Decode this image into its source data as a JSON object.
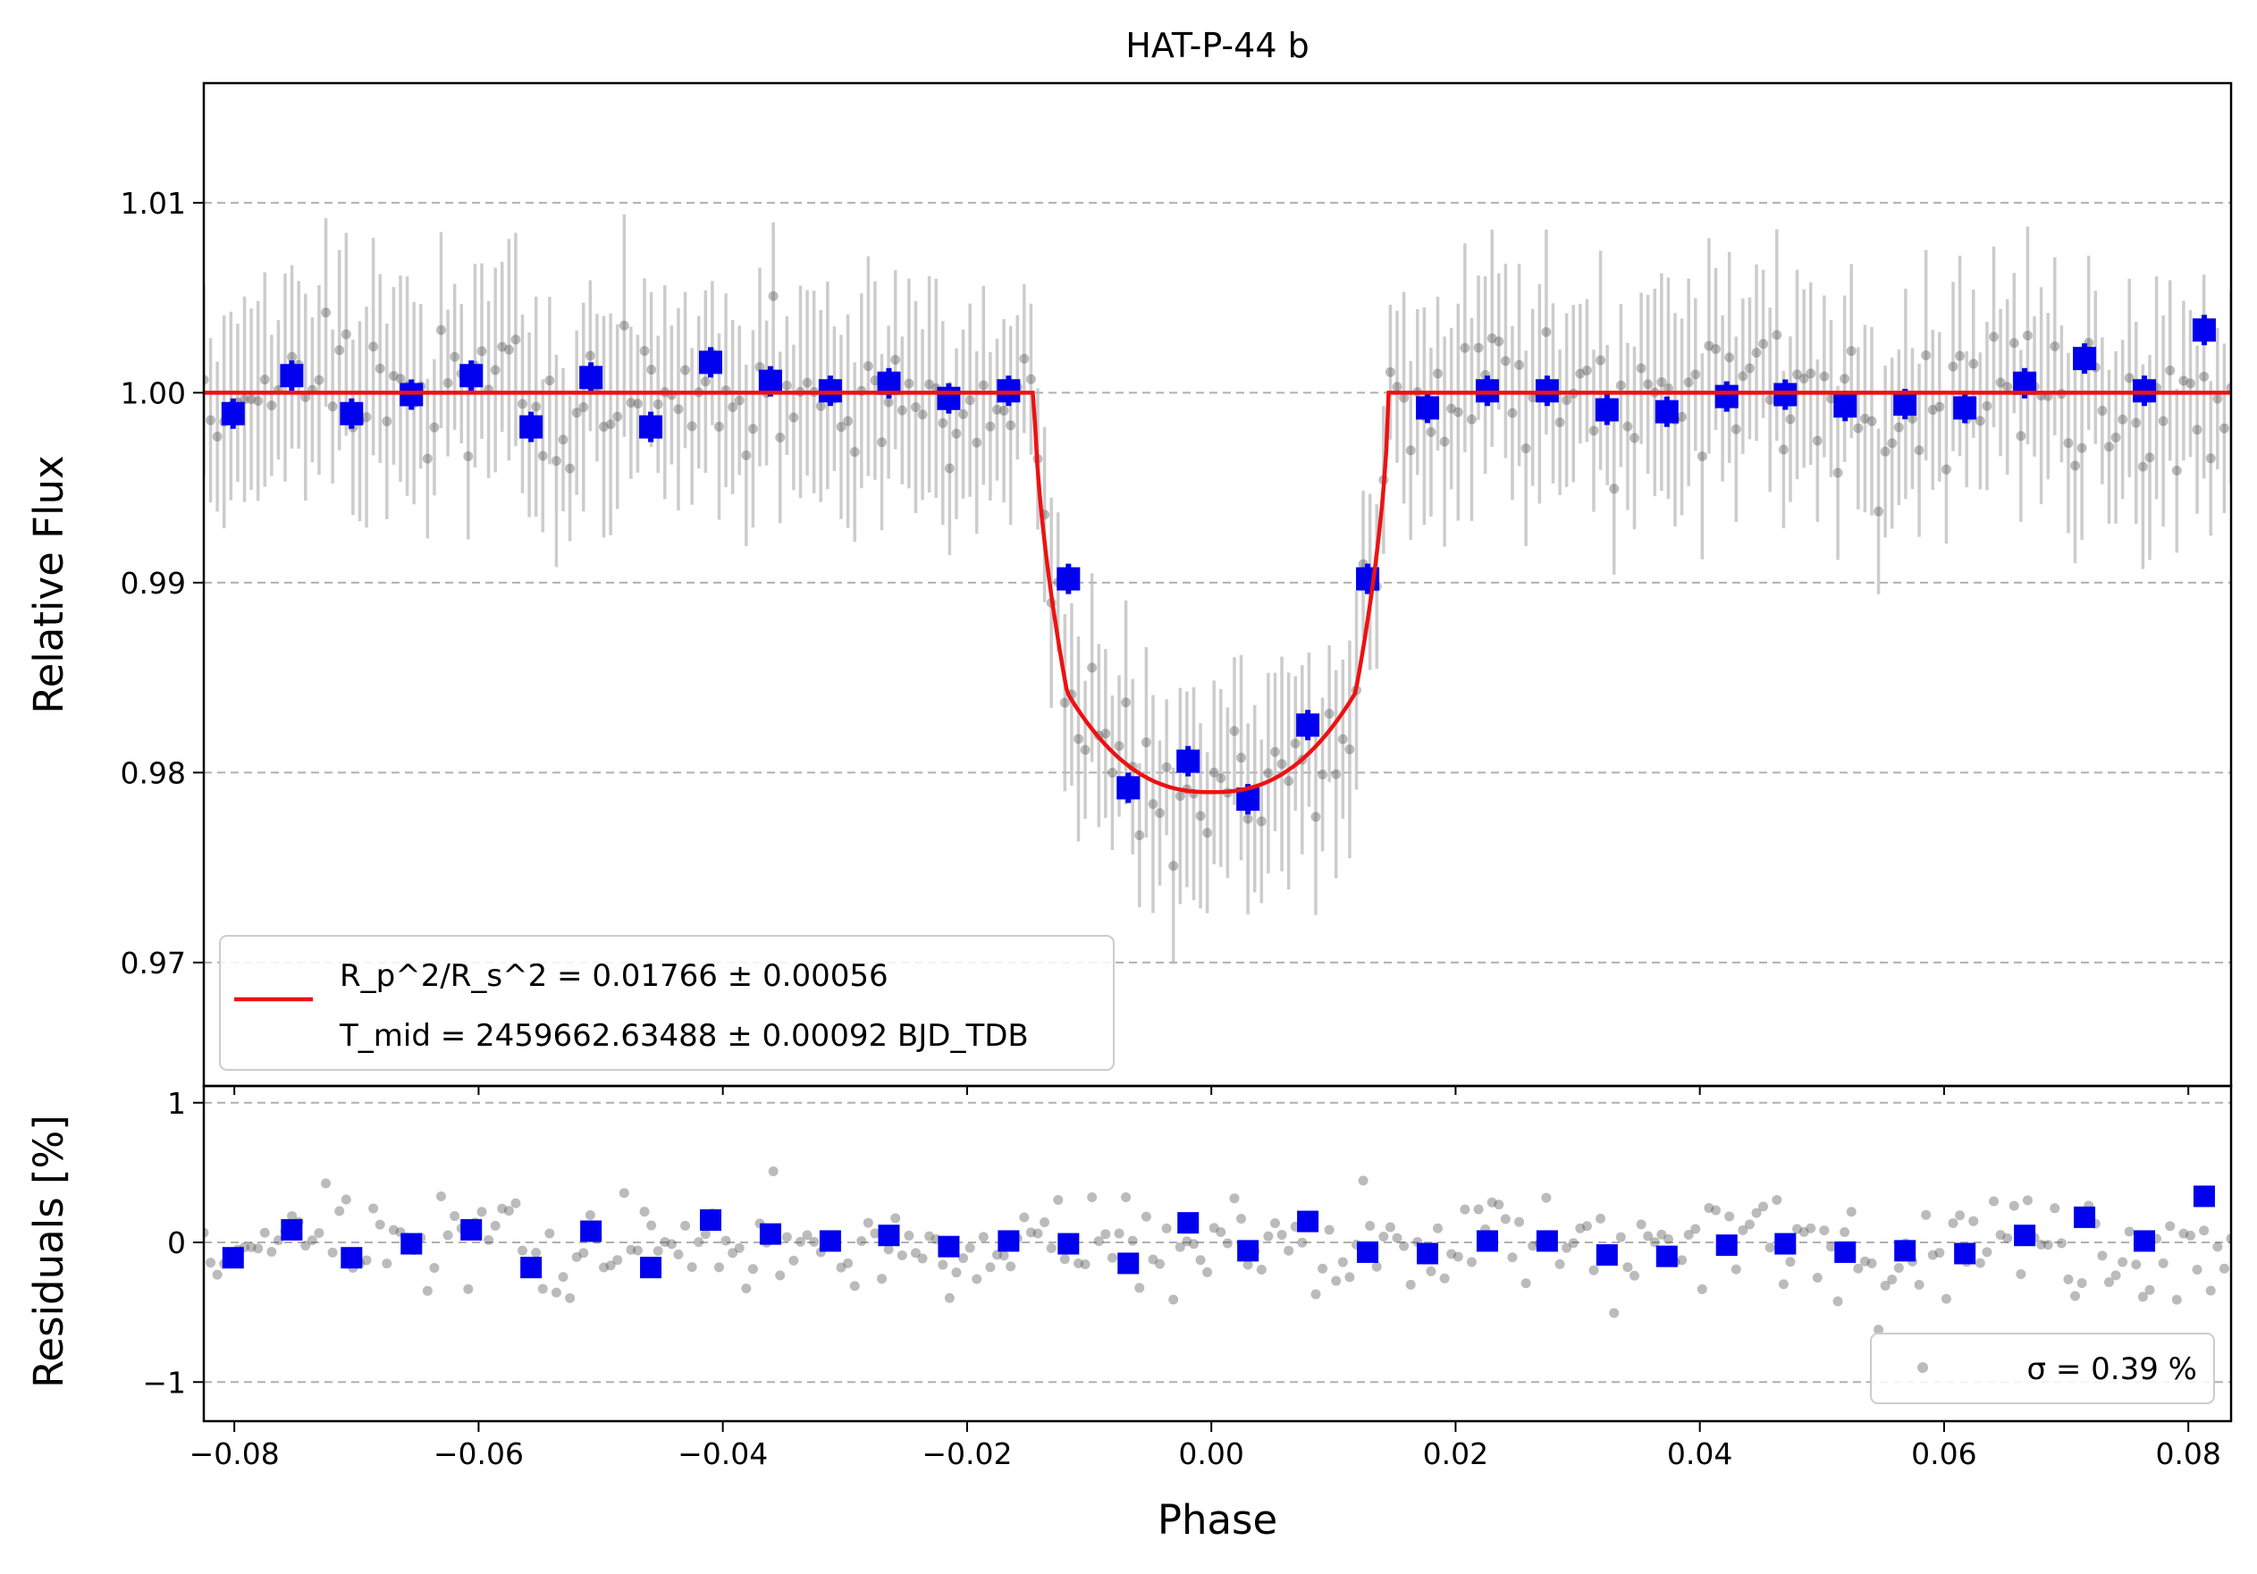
{
  "chart_data": [
    {
      "type": "scatter",
      "title": "HAT-P-44 b",
      "xlabel": "",
      "ylabel": "Relative Flux",
      "xlim": [
        -0.0825,
        0.0835
      ],
      "ylim": [
        0.9635,
        1.0163
      ],
      "x_ticks": [
        -0.08,
        -0.06,
        -0.04,
        -0.02,
        0.0,
        0.02,
        0.04,
        0.06,
        0.08
      ],
      "y_ticks": [
        0.97,
        0.98,
        0.99,
        1.0,
        1.01
      ],
      "y_tick_labels": [
        "0.97",
        "0.98",
        "0.99",
        "1.00",
        "1.01"
      ],
      "grid": "horizontal dashed",
      "legend": {
        "placement": "lower-left",
        "line1": "R_p^2/R_s^2 = 0.01766 ± 0.00056",
        "line2": "T_mid = 2459662.63488 ± 0.00092 BJD_TDB"
      },
      "model": {
        "name": "transit model",
        "depth": 0.02103,
        "t1": 0.0145,
        "t2": 0.0118,
        "ingress_depth_at_t2": 0.0158
      },
      "binned": {
        "x": [
          -0.0801,
          -0.0753,
          -0.0704,
          -0.0655,
          -0.0606,
          -0.0557,
          -0.0508,
          -0.0459,
          -0.041,
          -0.0361,
          -0.0312,
          -0.0264,
          -0.0215,
          -0.0166,
          -0.0117,
          -0.0068,
          -0.0019,
          0.003,
          0.0079,
          0.0128,
          0.0177,
          0.0226,
          0.0275,
          0.0324,
          0.0373,
          0.0422,
          0.047,
          0.0519,
          0.0568,
          0.0617,
          0.0666,
          0.0715,
          0.0764,
          0.0813
        ],
        "y": [
          0.9989,
          1.0009,
          0.9989,
          0.9999,
          1.0009,
          0.9982,
          1.0008,
          0.9982,
          1.0016,
          1.0006,
          1.0001,
          1.0005,
          0.9997,
          1.0001,
          0.9902,
          0.9792,
          0.9806,
          0.9786,
          0.9825,
          0.9902,
          0.9992,
          1.0001,
          1.0001,
          0.9991,
          0.999,
          0.9998,
          0.9999,
          0.9993,
          0.9994,
          0.9992,
          1.0005,
          1.0018,
          1.0001,
          1.0033
        ],
        "yerr": 0.0008
      }
    },
    {
      "type": "scatter",
      "title": "",
      "xlabel": "Phase",
      "ylabel": "Residuals [%]",
      "xlim": [
        -0.0825,
        0.0835
      ],
      "ylim": [
        -1.28,
        1.12
      ],
      "x_ticks": [
        -0.08,
        -0.06,
        -0.04,
        -0.02,
        0.0,
        0.02,
        0.04,
        0.06,
        0.08
      ],
      "x_tick_labels": [
        "−0.08",
        "−0.06",
        "−0.04",
        "−0.02",
        "0.00",
        "0.02",
        "0.04",
        "0.06",
        "0.08"
      ],
      "y_ticks": [
        -1,
        0,
        1
      ],
      "y_tick_labels": [
        "−1",
        "0",
        "1"
      ],
      "grid": "horizontal dashed",
      "legend": {
        "placement": "lower-right",
        "text": "σ = 0.39 %"
      },
      "binned": {
        "x": [
          -0.0801,
          -0.0753,
          -0.0704,
          -0.0655,
          -0.0606,
          -0.0557,
          -0.0508,
          -0.0459,
          -0.041,
          -0.0361,
          -0.0312,
          -0.0264,
          -0.0215,
          -0.0166,
          -0.0117,
          -0.0068,
          -0.0019,
          0.003,
          0.0079,
          0.0128,
          0.0177,
          0.0226,
          0.0275,
          0.0324,
          0.0373,
          0.0422,
          0.047,
          0.0519,
          0.0568,
          0.0617,
          0.0666,
          0.0715,
          0.0764,
          0.0813
        ],
        "y": [
          -0.11,
          0.09,
          -0.11,
          -0.01,
          0.09,
          -0.18,
          0.08,
          -0.18,
          0.16,
          0.06,
          0.01,
          0.05,
          -0.03,
          0.01,
          -0.01,
          -0.15,
          0.14,
          -0.06,
          0.15,
          -0.07,
          -0.08,
          0.01,
          0.01,
          -0.09,
          -0.1,
          -0.02,
          -0.01,
          -0.07,
          -0.06,
          -0.08,
          0.05,
          0.18,
          0.01,
          0.33
        ]
      }
    }
  ],
  "unbinned": {
    "x_start": -0.0825,
    "x_end": 0.0835,
    "count": 300,
    "scatter_sigma_percent": 0.39,
    "point_error": 0.0047,
    "seed": 44
  },
  "colors": {
    "model": "#ee1111",
    "binned": "#0000ee",
    "raw_points": "#555555",
    "raw_errorbars": "#bbbbbb",
    "grid": "#b0b0b0"
  }
}
